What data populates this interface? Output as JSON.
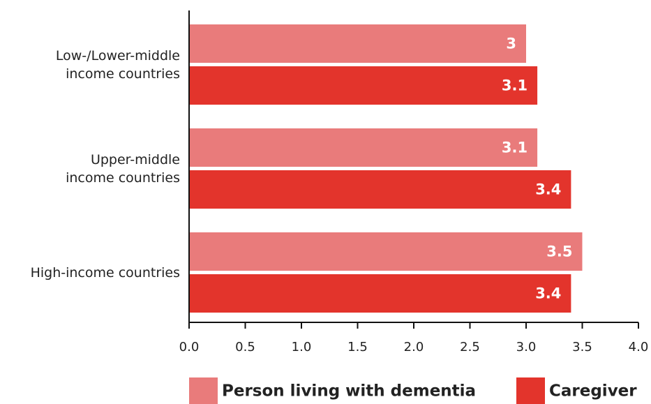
{
  "chart_data": {
    "type": "barh",
    "categories": [
      "Low-/Lower-middle\nincome countries",
      "Upper-middle\nincome countries",
      "High-income countries"
    ],
    "series": [
      {
        "name": "Person living with dementia",
        "color": "#e97b7b",
        "values": [
          3,
          3.1,
          3.5
        ]
      },
      {
        "name": "Caregiver",
        "color": "#e3342c",
        "values": [
          3.1,
          3.4,
          3.4
        ]
      }
    ],
    "xlim": [
      0,
      4
    ],
    "xticks": [
      {
        "value": 0,
        "label": "0.0"
      },
      0.5,
      {
        "value": 1,
        "label": "1.0"
      },
      1.5,
      {
        "value": 2,
        "label": "2.0"
      },
      2.5,
      {
        "value": 3,
        "label": "3.0"
      },
      3.5,
      {
        "value": 4,
        "label": "4.0"
      }
    ],
    "legend": "bottom"
  }
}
